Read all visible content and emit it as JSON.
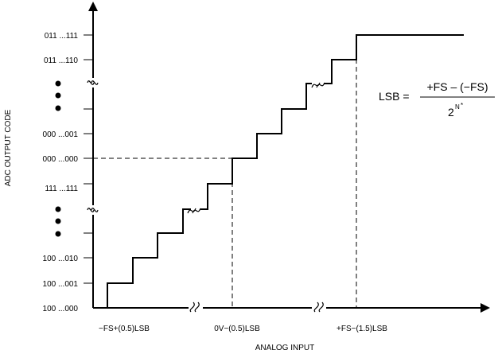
{
  "diagram": {
    "y_axis_title": "ADC OUTPUT CODE",
    "x_axis_title": "ANALOG INPUT",
    "y_tick_labels": [
      "011 ...111",
      "011 ...110",
      "000 ...001",
      "000 ...000",
      "111 ...111",
      "100 ...010",
      "100 ...001",
      "100 ...000"
    ],
    "x_tick_labels": [
      "−FS+(0.5)LSB",
      "0V−(0.5)LSB",
      "+FS−(1.5)LSB"
    ],
    "formula": {
      "lhs": "LSB =",
      "numerator": "+FS – (−FS)",
      "denominator_base": "2",
      "denominator_exponent": "N",
      "marker": "*"
    },
    "colors": {
      "line": "#000000",
      "background": "#ffffff"
    }
  }
}
